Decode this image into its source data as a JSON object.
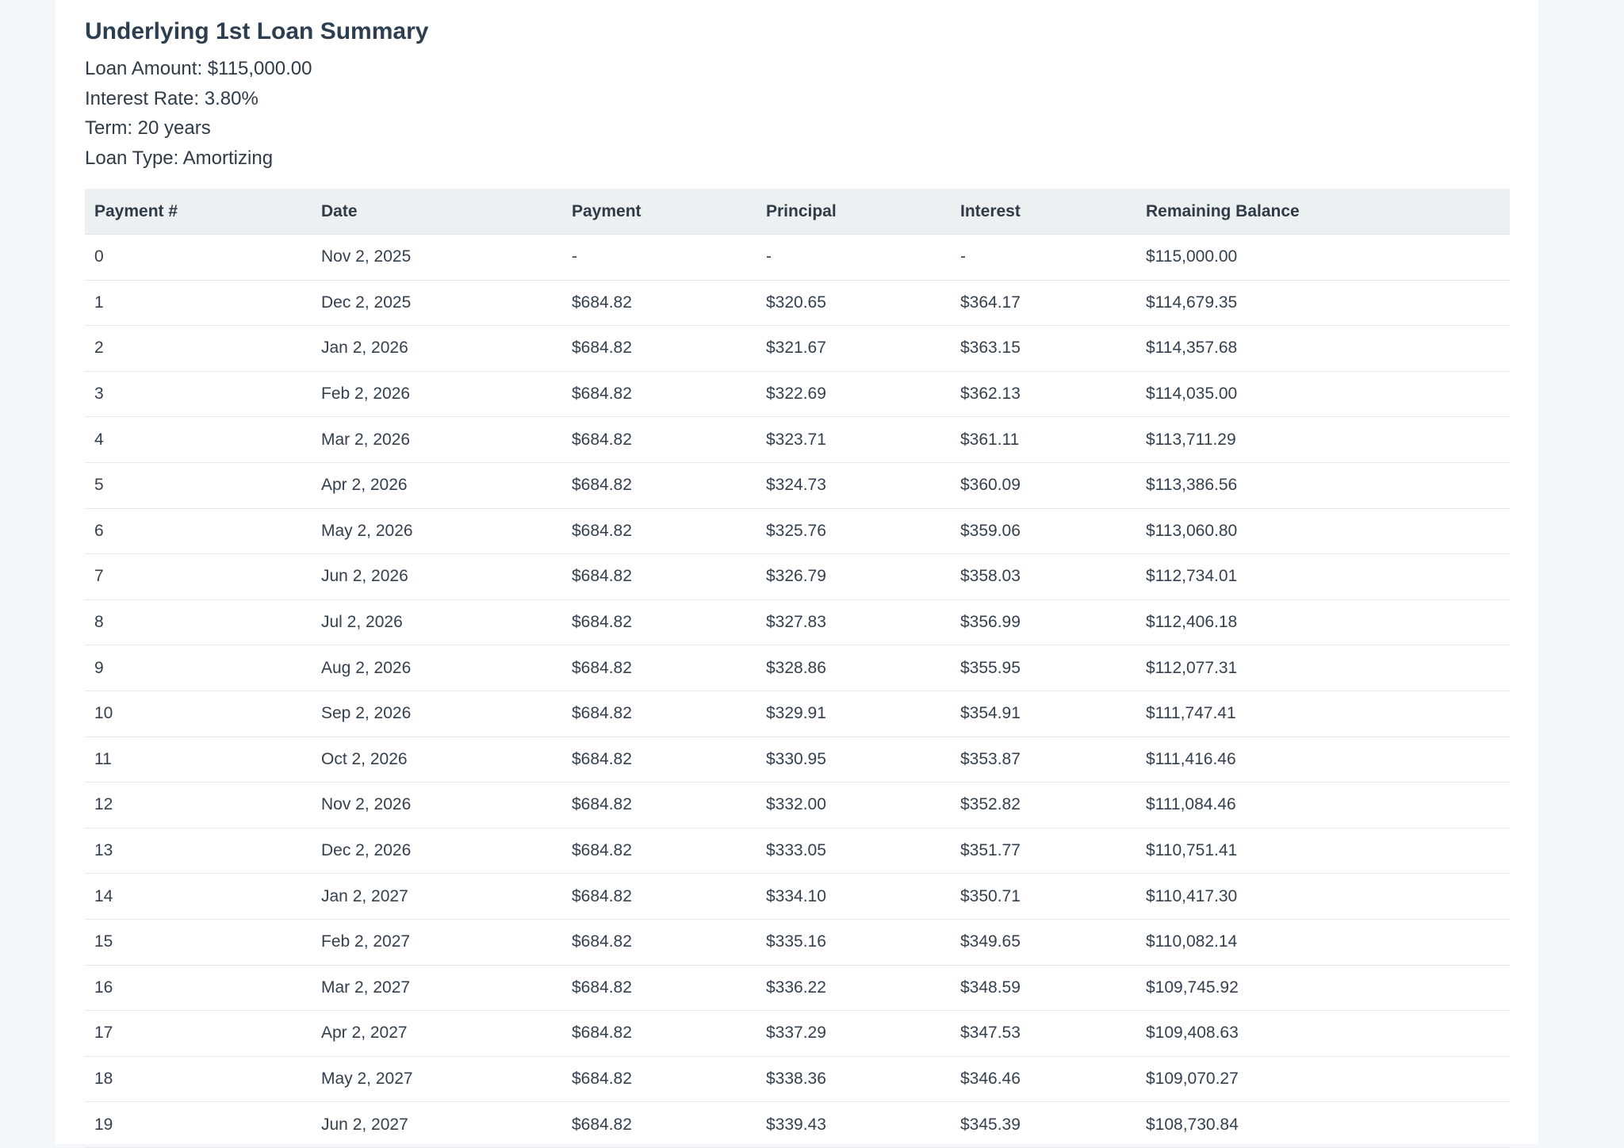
{
  "summary": {
    "title": "Underlying 1st Loan Summary",
    "loan_amount": "Loan Amount: $115,000.00",
    "interest_rate": "Interest Rate: 3.80%",
    "term": "Term: 20 years",
    "loan_type": "Loan Type: Amortizing"
  },
  "table": {
    "headers": [
      "Payment #",
      "Date",
      "Payment",
      "Principal",
      "Interest",
      "Remaining Balance"
    ],
    "rows": [
      [
        "0",
        "Nov 2, 2025",
        "-",
        "-",
        "-",
        "$115,000.00"
      ],
      [
        "1",
        "Dec 2, 2025",
        "$684.82",
        "$320.65",
        "$364.17",
        "$114,679.35"
      ],
      [
        "2",
        "Jan 2, 2026",
        "$684.82",
        "$321.67",
        "$363.15",
        "$114,357.68"
      ],
      [
        "3",
        "Feb 2, 2026",
        "$684.82",
        "$322.69",
        "$362.13",
        "$114,035.00"
      ],
      [
        "4",
        "Mar 2, 2026",
        "$684.82",
        "$323.71",
        "$361.11",
        "$113,711.29"
      ],
      [
        "5",
        "Apr 2, 2026",
        "$684.82",
        "$324.73",
        "$360.09",
        "$113,386.56"
      ],
      [
        "6",
        "May 2, 2026",
        "$684.82",
        "$325.76",
        "$359.06",
        "$113,060.80"
      ],
      [
        "7",
        "Jun 2, 2026",
        "$684.82",
        "$326.79",
        "$358.03",
        "$112,734.01"
      ],
      [
        "8",
        "Jul 2, 2026",
        "$684.82",
        "$327.83",
        "$356.99",
        "$112,406.18"
      ],
      [
        "9",
        "Aug 2, 2026",
        "$684.82",
        "$328.86",
        "$355.95",
        "$112,077.31"
      ],
      [
        "10",
        "Sep 2, 2026",
        "$684.82",
        "$329.91",
        "$354.91",
        "$111,747.41"
      ],
      [
        "11",
        "Oct 2, 2026",
        "$684.82",
        "$330.95",
        "$353.87",
        "$111,416.46"
      ],
      [
        "12",
        "Nov 2, 2026",
        "$684.82",
        "$332.00",
        "$352.82",
        "$111,084.46"
      ],
      [
        "13",
        "Dec 2, 2026",
        "$684.82",
        "$333.05",
        "$351.77",
        "$110,751.41"
      ],
      [
        "14",
        "Jan 2, 2027",
        "$684.82",
        "$334.10",
        "$350.71",
        "$110,417.30"
      ],
      [
        "15",
        "Feb 2, 2027",
        "$684.82",
        "$335.16",
        "$349.65",
        "$110,082.14"
      ],
      [
        "16",
        "Mar 2, 2027",
        "$684.82",
        "$336.22",
        "$348.59",
        "$109,745.92"
      ],
      [
        "17",
        "Apr 2, 2027",
        "$684.82",
        "$337.29",
        "$347.53",
        "$109,408.63"
      ],
      [
        "18",
        "May 2, 2027",
        "$684.82",
        "$338.36",
        "$346.46",
        "$109,070.27"
      ],
      [
        "19",
        "Jun 2, 2027",
        "$684.82",
        "$339.43",
        "$345.39",
        "$108,730.84"
      ]
    ]
  }
}
